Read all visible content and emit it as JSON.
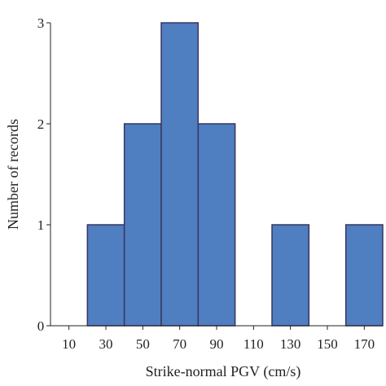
{
  "chart_data": {
    "type": "bar",
    "title": "",
    "xlabel": "Strike-normal PGV (cm/s)",
    "ylabel": "Number of records",
    "x_ticks": [
      "10",
      "30",
      "50",
      "70",
      "90",
      "110",
      "130",
      "150",
      "170"
    ],
    "y_ticks": [
      "0",
      "1",
      "2",
      "3"
    ],
    "ylim": [
      0,
      3
    ],
    "bins": [
      {
        "center": 10,
        "value": 0
      },
      {
        "center": 30,
        "value": 1
      },
      {
        "center": 50,
        "value": 2
      },
      {
        "center": 70,
        "value": 3
      },
      {
        "center": 90,
        "value": 2
      },
      {
        "center": 110,
        "value": 0
      },
      {
        "center": 130,
        "value": 1
      },
      {
        "center": 150,
        "value": 0
      },
      {
        "center": 170,
        "value": 1
      }
    ],
    "bar_color": "#4f7ec1",
    "bar_edge_color": "#3a3560",
    "grid": false,
    "legend": "none"
  }
}
